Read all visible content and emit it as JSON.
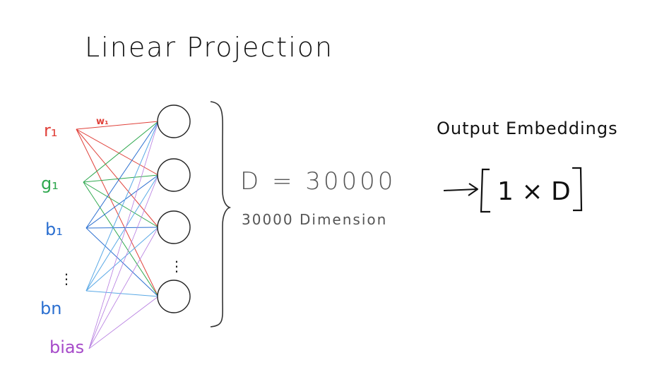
{
  "title": "Linear Projection",
  "inputs": [
    {
      "label": "r₁",
      "color": "#e0413a"
    },
    {
      "label": "g₁",
      "color": "#2fa84f"
    },
    {
      "label": "b₁",
      "color": "#2b6fd0"
    },
    {
      "label": "⋮",
      "color": "#222222"
    },
    {
      "label": "bn",
      "color": "#2b6fd0"
    },
    {
      "label": "bias",
      "color": "#a64ac9"
    }
  ],
  "weight_label": "w₁",
  "weight_color": "#e0413a",
  "hidden_dots": "⋮",
  "dimension_eq": "D = 30000",
  "dimension_text": "30000 Dimension",
  "output_label": "Output Embeddings",
  "arrow": "→",
  "output_matrix": "1 × D",
  "colors": {
    "red": "#e0413a",
    "green": "#2fa84f",
    "blue": "#2b6fd0",
    "lightblue": "#5aa9e6",
    "purple": "#b57be0",
    "ink": "#111111",
    "pencil": "#555555"
  }
}
